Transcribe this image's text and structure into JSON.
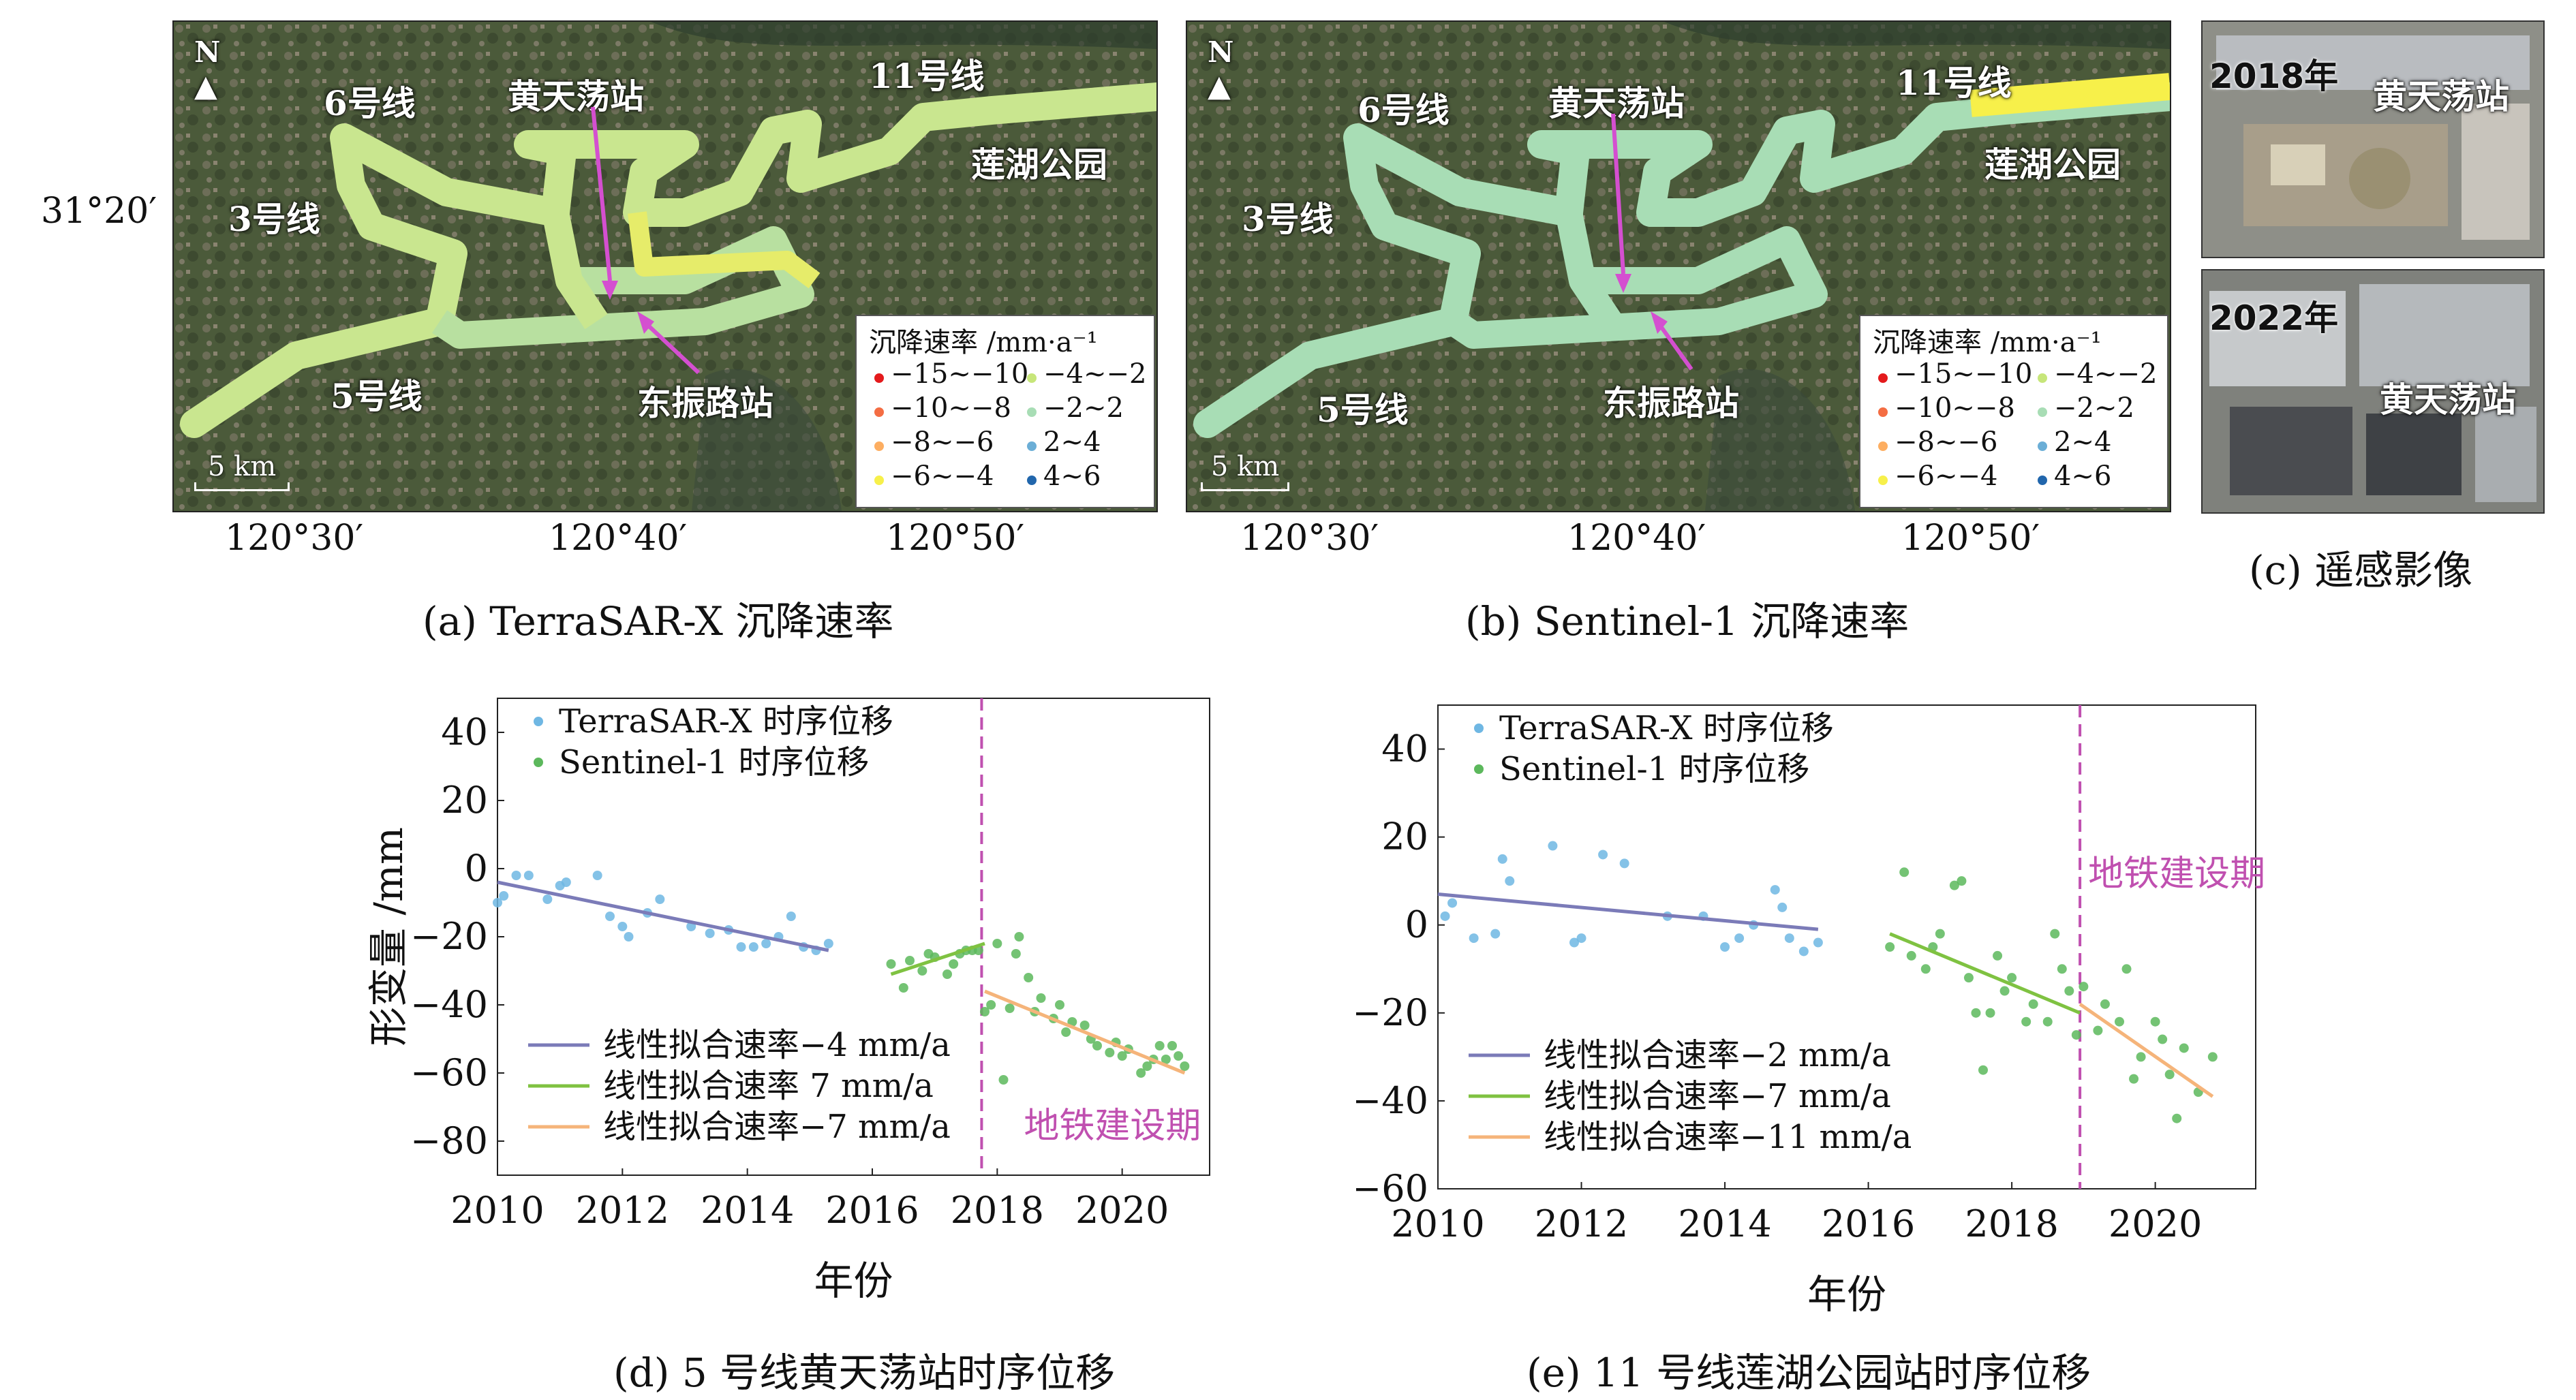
{
  "map_labels": {
    "north": "N",
    "line6": "6号线",
    "line3": "3号线",
    "line5": "5号线",
    "line11": "11号线",
    "station_hts": "黄天荡站",
    "station_dzl": "东振路站",
    "park": "莲湖公园",
    "scale": "5 km"
  },
  "legend": {
    "title": "沉降速率 /mm·a⁻¹",
    "items": [
      {
        "label": "−15~−10",
        "color": "#e41a1c"
      },
      {
        "label": "−10~−8",
        "color": "#f46d43"
      },
      {
        "label": "−8~−6",
        "color": "#fdae61"
      },
      {
        "label": "−6~−4",
        "color": "#f7f04a"
      },
      {
        "label": "−4~−2",
        "color": "#c7e67a"
      },
      {
        "label": "−2~2",
        "color": "#a8ddb5"
      },
      {
        "label": "2~4",
        "color": "#6baed6"
      },
      {
        "label": "4~6",
        "color": "#2166ac"
      }
    ]
  },
  "axes": {
    "lat_label": "31°20′",
    "lon_labels": [
      "120°30′",
      "120°40′",
      "120°50′"
    ]
  },
  "captions": {
    "a": "(a) TerraSAR-X 沉降速率",
    "b": "(b) Sentinel-1 沉降速率",
    "c": "(c) 遥感影像",
    "d": "(d) 5 号线黄天荡站时序位移",
    "e": "(e) 11 号线莲湖公园站时序位移"
  },
  "photos": {
    "top_year": "2018年",
    "top_station": "黄天荡站",
    "bottom_year": "2022年",
    "bottom_station": "黄天荡站"
  },
  "colors": {
    "terrasar": "#6fb7e3",
    "sentinel": "#5cb85c",
    "fit1": "#7b7bb8",
    "fit2": "#7fc241",
    "fit3": "#f5b47a",
    "construction": "#c050b0"
  },
  "chart_data": [
    {
      "type": "scatter",
      "title": "",
      "xlabel": "年份",
      "ylabel": "形变量 /mm",
      "xlim": [
        2010,
        2021.4
      ],
      "ylim": [
        -90,
        50
      ],
      "xticks": [
        2010,
        2012,
        2014,
        2016,
        2018,
        2020
      ],
      "yticks": [
        40,
        20,
        0,
        -20,
        -40,
        -60,
        -80
      ],
      "construction_x": 2017.75,
      "construction_label": "地铁建设期",
      "series": [
        {
          "name": "TerraSAR-X 时序位移",
          "points": [
            [
              2010.0,
              -10
            ],
            [
              2010.1,
              -8
            ],
            [
              2010.3,
              -2
            ],
            [
              2010.5,
              -2
            ],
            [
              2010.8,
              -9
            ],
            [
              2011.0,
              -5
            ],
            [
              2011.1,
              -4
            ],
            [
              2011.6,
              -2
            ],
            [
              2011.8,
              -14
            ],
            [
              2012.0,
              -17
            ],
            [
              2012.1,
              -20
            ],
            [
              2012.4,
              -13
            ],
            [
              2012.6,
              -9
            ],
            [
              2013.1,
              -17
            ],
            [
              2013.4,
              -19
            ],
            [
              2013.7,
              -18
            ],
            [
              2013.9,
              -23
            ],
            [
              2014.1,
              -23
            ],
            [
              2014.3,
              -22
            ],
            [
              2014.5,
              -20
            ],
            [
              2014.7,
              -14
            ],
            [
              2014.9,
              -23
            ],
            [
              2015.1,
              -24
            ],
            [
              2015.3,
              -22
            ]
          ]
        },
        {
          "name": "Sentinel-1 时序位移",
          "points": [
            [
              2016.3,
              -28
            ],
            [
              2016.5,
              -35
            ],
            [
              2016.6,
              -27
            ],
            [
              2016.8,
              -30
            ],
            [
              2016.9,
              -25
            ],
            [
              2017.0,
              -26
            ],
            [
              2017.2,
              -31
            ],
            [
              2017.3,
              -28
            ],
            [
              2017.4,
              -25
            ],
            [
              2017.5,
              -24
            ],
            [
              2017.6,
              -24
            ],
            [
              2017.7,
              -24
            ],
            [
              2017.8,
              -42
            ],
            [
              2017.9,
              -40
            ],
            [
              2018.0,
              -22
            ],
            [
              2018.1,
              -62
            ],
            [
              2018.2,
              -41
            ],
            [
              2018.3,
              -25
            ],
            [
              2018.35,
              -20
            ],
            [
              2018.5,
              -32
            ],
            [
              2018.6,
              -42
            ],
            [
              2018.7,
              -38
            ],
            [
              2018.9,
              -44
            ],
            [
              2019.0,
              -40
            ],
            [
              2019.1,
              -48
            ],
            [
              2019.2,
              -45
            ],
            [
              2019.4,
              -46
            ],
            [
              2019.5,
              -50
            ],
            [
              2019.6,
              -52
            ],
            [
              2019.8,
              -54
            ],
            [
              2019.9,
              -51
            ],
            [
              2020.0,
              -55
            ],
            [
              2020.1,
              -53
            ],
            [
              2020.3,
              -60
            ],
            [
              2020.4,
              -58
            ],
            [
              2020.5,
              -56
            ],
            [
              2020.6,
              -52
            ],
            [
              2020.7,
              -56
            ],
            [
              2020.8,
              -52
            ],
            [
              2020.9,
              -55
            ],
            [
              2021.0,
              -58
            ]
          ]
        }
      ],
      "fits": [
        {
          "name": "线性拟合速率−4 mm/a",
          "x": [
            2010,
            2015.3
          ],
          "y": [
            -4,
            -24
          ],
          "color": "#7b7bb8"
        },
        {
          "name": "线性拟合速率 7 mm/a",
          "x": [
            2016.3,
            2017.8
          ],
          "y": [
            -31,
            -22
          ],
          "color": "#7fc241"
        },
        {
          "name": "线性拟合速率−7 mm/a",
          "x": [
            2017.8,
            2021.0
          ],
          "y": [
            -36,
            -60
          ],
          "color": "#f5b47a"
        }
      ]
    },
    {
      "type": "scatter",
      "title": "",
      "xlabel": "年份",
      "ylabel": "",
      "xlim": [
        2010,
        2021.4
      ],
      "ylim": [
        -60,
        50
      ],
      "xticks": [
        2010,
        2012,
        2014,
        2016,
        2018,
        2020
      ],
      "yticks": [
        40,
        20,
        0,
        -20,
        -40,
        -60
      ],
      "construction_x": 2018.95,
      "construction_label": "地铁建设期",
      "series": [
        {
          "name": "TerraSAR-X 时序位移",
          "points": [
            [
              2010.1,
              2
            ],
            [
              2010.2,
              5
            ],
            [
              2010.5,
              -3
            ],
            [
              2010.8,
              -2
            ],
            [
              2010.9,
              15
            ],
            [
              2011.0,
              10
            ],
            [
              2011.6,
              18
            ],
            [
              2011.9,
              -4
            ],
            [
              2012.0,
              -3
            ],
            [
              2012.3,
              16
            ],
            [
              2012.6,
              14
            ],
            [
              2013.2,
              2
            ],
            [
              2013.7,
              2
            ],
            [
              2014.0,
              -5
            ],
            [
              2014.2,
              -3
            ],
            [
              2014.4,
              0
            ],
            [
              2014.7,
              8
            ],
            [
              2014.8,
              4
            ],
            [
              2014.9,
              -3
            ],
            [
              2015.1,
              -6
            ],
            [
              2015.3,
              -4
            ]
          ]
        },
        {
          "name": "Sentinel-1 时序位移",
          "points": [
            [
              2016.3,
              -5
            ],
            [
              2016.5,
              12
            ],
            [
              2016.6,
              -7
            ],
            [
              2016.8,
              -10
            ],
            [
              2016.9,
              -5
            ],
            [
              2017.0,
              -2
            ],
            [
              2017.2,
              9
            ],
            [
              2017.3,
              10
            ],
            [
              2017.4,
              -12
            ],
            [
              2017.5,
              -20
            ],
            [
              2017.6,
              -33
            ],
            [
              2017.7,
              -20
            ],
            [
              2017.8,
              -7
            ],
            [
              2017.9,
              -15
            ],
            [
              2018.0,
              -12
            ],
            [
              2018.2,
              -22
            ],
            [
              2018.3,
              -18
            ],
            [
              2018.5,
              -22
            ],
            [
              2018.6,
              -2
            ],
            [
              2018.7,
              -10
            ],
            [
              2018.8,
              -15
            ],
            [
              2018.9,
              -25
            ],
            [
              2019.0,
              -14
            ],
            [
              2019.2,
              -24
            ],
            [
              2019.3,
              -18
            ],
            [
              2019.5,
              -22
            ],
            [
              2019.6,
              -10
            ],
            [
              2019.7,
              -35
            ],
            [
              2019.8,
              -30
            ],
            [
              2020.0,
              -22
            ],
            [
              2020.1,
              -26
            ],
            [
              2020.2,
              -34
            ],
            [
              2020.3,
              -44
            ],
            [
              2020.4,
              -28
            ],
            [
              2020.6,
              -38
            ],
            [
              2020.8,
              -30
            ]
          ]
        }
      ],
      "fits": [
        {
          "name": "线性拟合速率−2 mm/a",
          "x": [
            2010,
            2015.3
          ],
          "y": [
            7,
            -1
          ],
          "color": "#7b7bb8"
        },
        {
          "name": "线性拟合速率−7 mm/a",
          "x": [
            2016.3,
            2018.95
          ],
          "y": [
            -2,
            -20
          ],
          "color": "#7fc241"
        },
        {
          "name": "线性拟合速率−11 mm/a",
          "x": [
            2018.95,
            2020.8
          ],
          "y": [
            -18,
            -39
          ],
          "color": "#f5b47a"
        }
      ]
    }
  ]
}
